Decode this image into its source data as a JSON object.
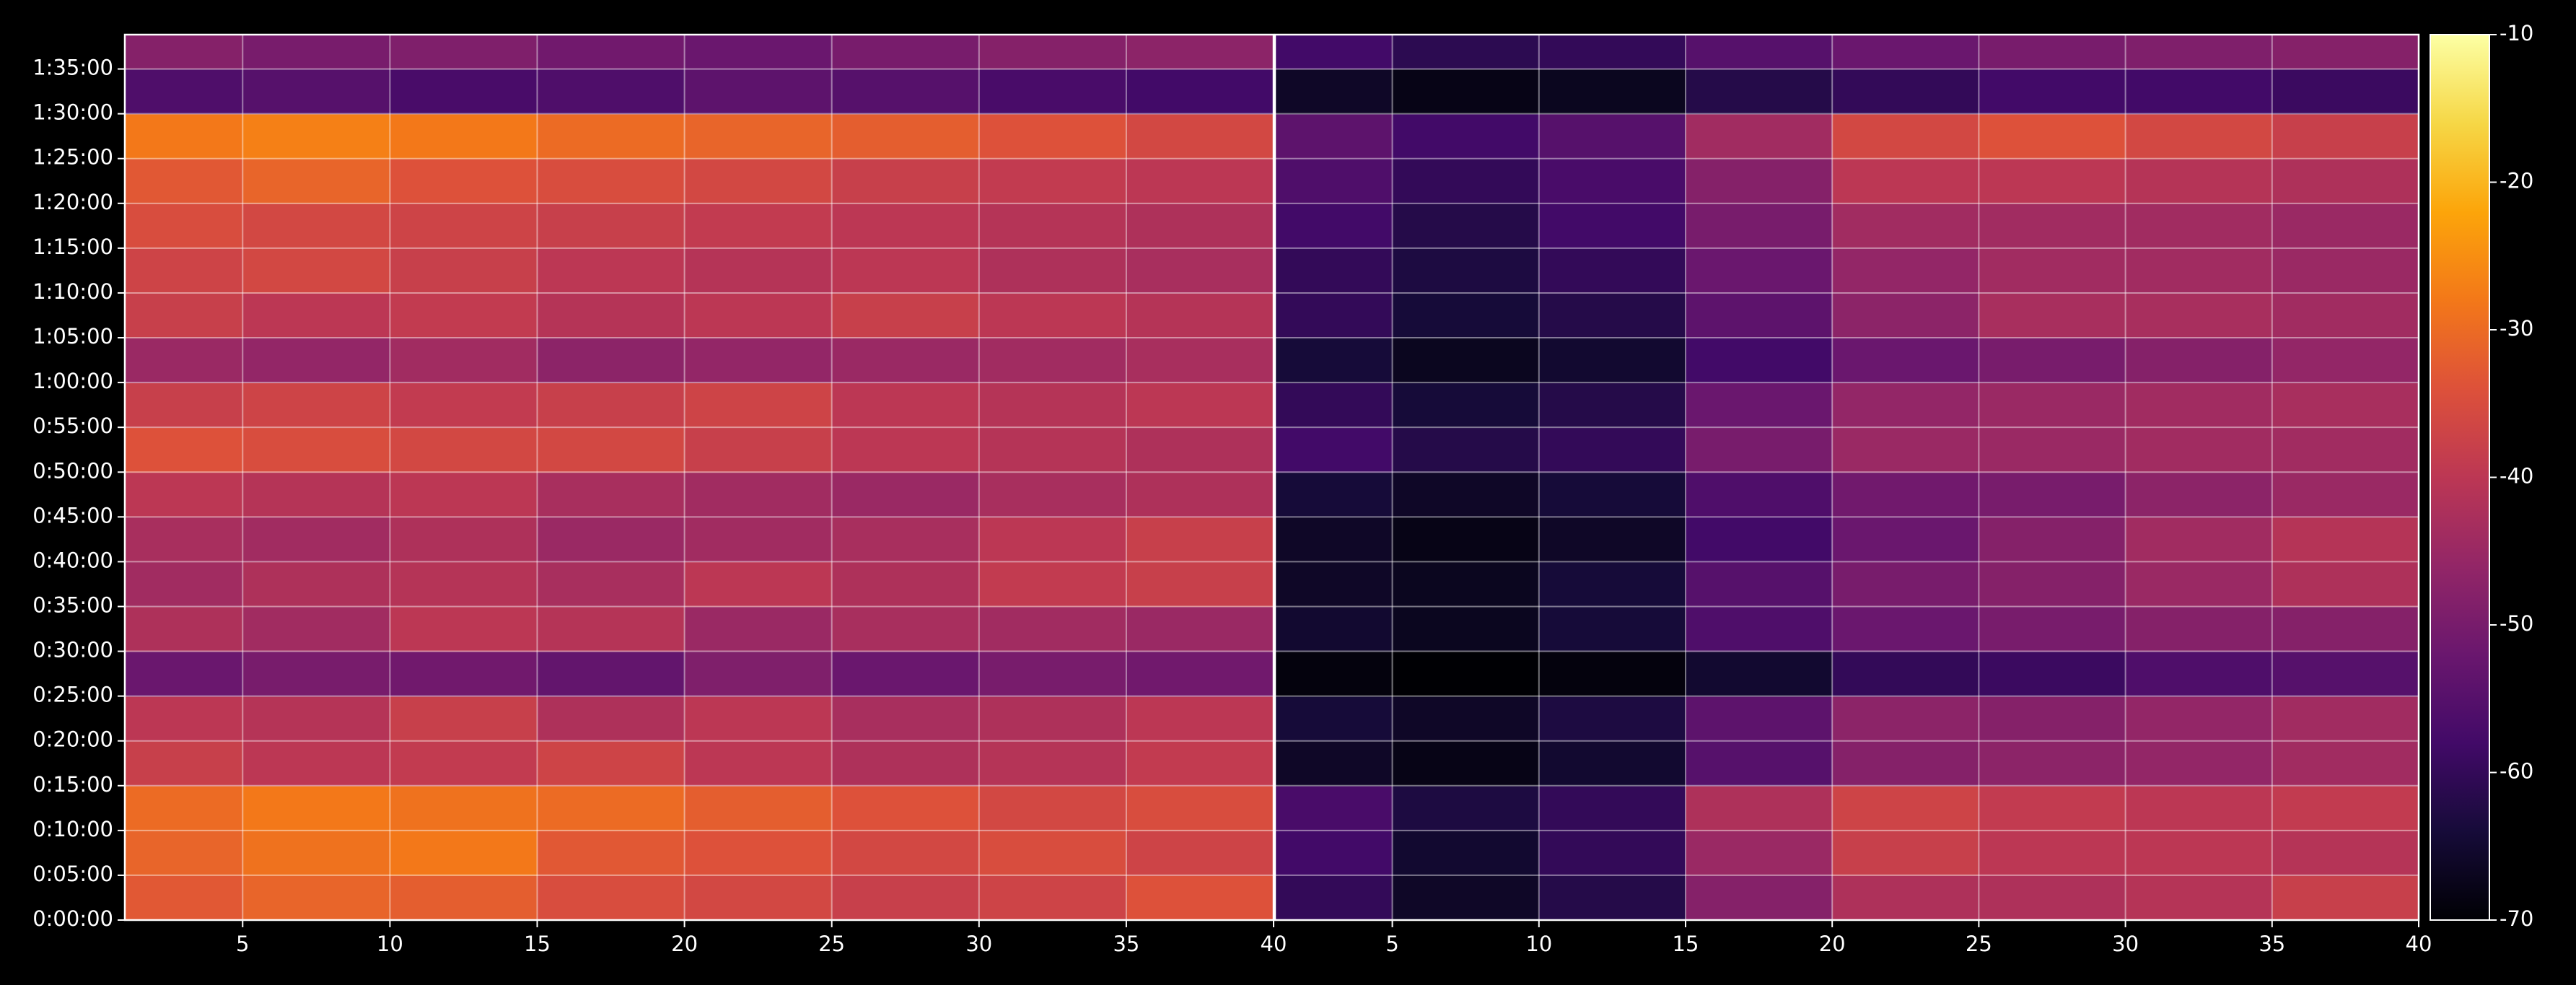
{
  "chart_data": [
    {
      "type": "heatmap",
      "x_bins": [
        1,
        5,
        10,
        15,
        20,
        25,
        30,
        35,
        40
      ],
      "y_bins": [
        0,
        300,
        600,
        900,
        1200,
        1500,
        1800,
        2100,
        2400,
        2700,
        3000,
        3300,
        3600,
        3900,
        4200,
        4500,
        4800,
        5100,
        5400,
        5700,
        5930
      ],
      "values": [
        [
          -33,
          -31,
          -32,
          -35,
          -36,
          -38,
          -37,
          -34
        ],
        [
          -31,
          -29,
          -28,
          -33,
          -34,
          -36,
          -35,
          -37
        ],
        [
          -30,
          -28,
          -29,
          -30,
          -32,
          -34,
          -36,
          -35
        ],
        [
          -38,
          -40,
          -39,
          -37,
          -40,
          -42,
          -41,
          -39
        ],
        [
          -40,
          -41,
          -38,
          -42,
          -40,
          -43,
          -42,
          -40
        ],
        [
          -52,
          -50,
          -51,
          -53,
          -49,
          -52,
          -50,
          -51
        ],
        [
          -42,
          -44,
          -40,
          -41,
          -45,
          -43,
          -44,
          -45
        ],
        [
          -44,
          -42,
          -41,
          -43,
          -40,
          -42,
          -39,
          -38
        ],
        [
          -43,
          -44,
          -42,
          -45,
          -44,
          -43,
          -40,
          -38
        ],
        [
          -40,
          -41,
          -40,
          -43,
          -44,
          -45,
          -43,
          -42
        ],
        [
          -34,
          -35,
          -36,
          -36,
          -38,
          -40,
          -41,
          -42
        ],
        [
          -38,
          -37,
          -39,
          -38,
          -37,
          -40,
          -41,
          -40
        ],
        [
          -45,
          -46,
          -44,
          -47,
          -46,
          -45,
          -44,
          -43
        ],
        [
          -38,
          -40,
          -39,
          -41,
          -40,
          -38,
          -40,
          -41
        ],
        [
          -37,
          -36,
          -38,
          -40,
          -41,
          -40,
          -42,
          -43
        ],
        [
          -35,
          -36,
          -37,
          -38,
          -39,
          -40,
          -41,
          -42
        ],
        [
          -33,
          -31,
          -34,
          -35,
          -36,
          -38,
          -39,
          -40
        ],
        [
          -28,
          -27,
          -28,
          -30,
          -31,
          -32,
          -34,
          -36
        ],
        [
          -56,
          -55,
          -57,
          -56,
          -54,
          -55,
          -57,
          -58
        ],
        [
          -48,
          -50,
          -49,
          -51,
          -52,
          -50,
          -48,
          -47
        ]
      ],
      "xlim": [
        1,
        40
      ],
      "xticks": [
        5,
        10,
        15,
        20,
        25,
        30,
        35,
        40
      ],
      "ylim": [
        0,
        5930
      ],
      "yticks": [
        {
          "value": 0,
          "label": "0:00:00"
        },
        {
          "value": 300,
          "label": "0:05:00"
        },
        {
          "value": 600,
          "label": "0:10:00"
        },
        {
          "value": 900,
          "label": "0:15:00"
        },
        {
          "value": 1200,
          "label": "0:20:00"
        },
        {
          "value": 1500,
          "label": "0:25:00"
        },
        {
          "value": 1800,
          "label": "0:30:00"
        },
        {
          "value": 2100,
          "label": "0:35:00"
        },
        {
          "value": 2400,
          "label": "0:40:00"
        },
        {
          "value": 2700,
          "label": "0:45:00"
        },
        {
          "value": 3000,
          "label": "0:50:00"
        },
        {
          "value": 3300,
          "label": "0:55:00"
        },
        {
          "value": 3600,
          "label": "1:00:00"
        },
        {
          "value": 3900,
          "label": "1:05:00"
        },
        {
          "value": 4200,
          "label": "1:10:00"
        },
        {
          "value": 4500,
          "label": "1:15:00"
        },
        {
          "value": 4800,
          "label": "1:20:00"
        },
        {
          "value": 5100,
          "label": "1:25:00"
        },
        {
          "value": 5400,
          "label": "1:30:00"
        },
        {
          "value": 5700,
          "label": "1:35:00"
        }
      ],
      "grid": true
    },
    {
      "type": "heatmap",
      "x_bins": [
        1,
        5,
        10,
        15,
        20,
        25,
        30,
        35,
        40
      ],
      "y_bins": [
        0,
        300,
        600,
        900,
        1200,
        1500,
        1800,
        2100,
        2400,
        2700,
        3000,
        3300,
        3600,
        3900,
        4200,
        4500,
        4800,
        5100,
        5400,
        5700,
        5930
      ],
      "values": [
        [
          -60,
          -66,
          -62,
          -48,
          -42,
          -42,
          -41,
          -38
        ],
        [
          -58,
          -65,
          -60,
          -45,
          -38,
          -40,
          -40,
          -41
        ],
        [
          -57,
          -63,
          -60,
          -42,
          -37,
          -39,
          -40,
          -39
        ],
        [
          -66,
          -68,
          -65,
          -55,
          -48,
          -47,
          -46,
          -44
        ],
        [
          -64,
          -66,
          -63,
          -54,
          -47,
          -48,
          -46,
          -44
        ],
        [
          -69,
          -70,
          -69,
          -65,
          -60,
          -59,
          -56,
          -55
        ],
        [
          -65,
          -67,
          -64,
          -56,
          -52,
          -50,
          -48,
          -48
        ],
        [
          -66,
          -67,
          -64,
          -55,
          -50,
          -48,
          -45,
          -42
        ],
        [
          -66,
          -68,
          -66,
          -58,
          -52,
          -48,
          -44,
          -41
        ],
        [
          -64,
          -66,
          -64,
          -56,
          -51,
          -50,
          -47,
          -45
        ],
        [
          -58,
          -62,
          -60,
          -50,
          -45,
          -45,
          -44,
          -44
        ],
        [
          -60,
          -64,
          -62,
          -52,
          -46,
          -45,
          -44,
          -43
        ],
        [
          -64,
          -67,
          -65,
          -58,
          -52,
          -50,
          -48,
          -46
        ],
        [
          -60,
          -64,
          -62,
          -54,
          -47,
          -43,
          -43,
          -44
        ],
        [
          -60,
          -63,
          -60,
          -52,
          -46,
          -44,
          -44,
          -45
        ],
        [
          -58,
          -62,
          -58,
          -50,
          -44,
          -44,
          -44,
          -45
        ],
        [
          -56,
          -60,
          -57,
          -48,
          -40,
          -40,
          -41,
          -42
        ],
        [
          -54,
          -58,
          -55,
          -44,
          -36,
          -34,
          -36,
          -38
        ],
        [
          -66,
          -68,
          -67,
          -62,
          -60,
          -58,
          -58,
          -59
        ],
        [
          -58,
          -61,
          -60,
          -55,
          -52,
          -50,
          -49,
          -48
        ]
      ],
      "xlim": [
        1,
        40
      ],
      "xticks": [
        5,
        10,
        15,
        20,
        25,
        30,
        35,
        40
      ],
      "ylim": [
        0,
        5930
      ],
      "grid": true
    }
  ],
  "colorbar": {
    "lim": [
      -70,
      -10
    ],
    "ticks": [
      -70,
      -60,
      -50,
      -40,
      -30,
      -20,
      -10
    ],
    "colormap": "inferno"
  }
}
